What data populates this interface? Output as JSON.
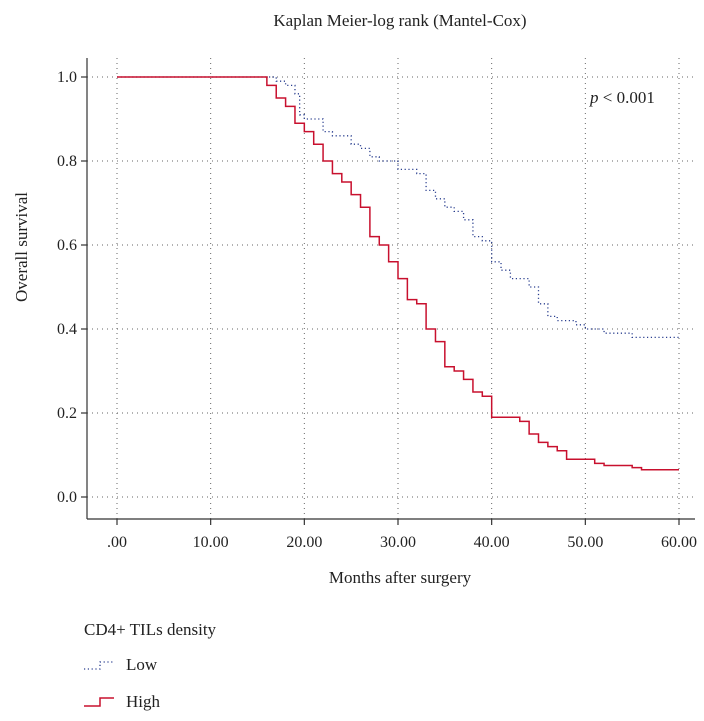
{
  "chart_data": {
    "type": "line",
    "title": "Kaplan Meier-log rank (Mantel-Cox)",
    "xlabel": "Months after surgery",
    "ylabel": "Overall survival",
    "xlim": [
      0,
      60
    ],
    "ylim": [
      0,
      1
    ],
    "x_ticks": [
      ".00",
      "10.00",
      "20.00",
      "30.00",
      "40.00",
      "50.00",
      "60.00"
    ],
    "y_ticks": [
      "0.0",
      "0.2",
      "0.4",
      "0.6",
      "0.8",
      "1.0"
    ],
    "grid": true,
    "annotation": {
      "italic": "p",
      "text": " < 0.001"
    },
    "legend": {
      "title": "CD4+ TILs density",
      "placement": "bottom-left",
      "entries": [
        "Low",
        "High"
      ]
    },
    "series": [
      {
        "name": "Low",
        "style": "dotted",
        "color": "#2a3f8f",
        "points": [
          [
            0,
            1.0
          ],
          [
            16,
            1.0
          ],
          [
            17,
            0.99
          ],
          [
            18,
            0.98
          ],
          [
            19,
            0.96
          ],
          [
            19.5,
            0.91
          ],
          [
            20,
            0.9
          ],
          [
            21,
            0.9
          ],
          [
            22,
            0.87
          ],
          [
            23,
            0.86
          ],
          [
            24,
            0.86
          ],
          [
            25,
            0.84
          ],
          [
            26,
            0.83
          ],
          [
            27,
            0.81
          ],
          [
            28,
            0.8
          ],
          [
            29,
            0.8
          ],
          [
            30,
            0.78
          ],
          [
            32,
            0.77
          ],
          [
            33,
            0.73
          ],
          [
            34,
            0.71
          ],
          [
            35,
            0.69
          ],
          [
            36,
            0.68
          ],
          [
            37,
            0.66
          ],
          [
            38,
            0.62
          ],
          [
            39,
            0.61
          ],
          [
            40,
            0.56
          ],
          [
            41,
            0.54
          ],
          [
            42,
            0.52
          ],
          [
            43,
            0.52
          ],
          [
            44,
            0.5
          ],
          [
            45,
            0.46
          ],
          [
            46,
            0.43
          ],
          [
            47,
            0.42
          ],
          [
            48,
            0.42
          ],
          [
            49,
            0.41
          ],
          [
            50,
            0.4
          ],
          [
            51,
            0.4
          ],
          [
            52,
            0.39
          ],
          [
            55,
            0.38
          ],
          [
            60,
            0.38
          ]
        ]
      },
      {
        "name": "High",
        "style": "solid",
        "color": "#c8102e",
        "points": [
          [
            0,
            1.0
          ],
          [
            15,
            1.0
          ],
          [
            16,
            0.98
          ],
          [
            17,
            0.95
          ],
          [
            18,
            0.93
          ],
          [
            19,
            0.89
          ],
          [
            20,
            0.87
          ],
          [
            21,
            0.84
          ],
          [
            22,
            0.8
          ],
          [
            23,
            0.77
          ],
          [
            24,
            0.75
          ],
          [
            25,
            0.72
          ],
          [
            26,
            0.69
          ],
          [
            27,
            0.62
          ],
          [
            28,
            0.6
          ],
          [
            29,
            0.56
          ],
          [
            30,
            0.52
          ],
          [
            31,
            0.47
          ],
          [
            32,
            0.46
          ],
          [
            33,
            0.4
          ],
          [
            34,
            0.37
          ],
          [
            35,
            0.31
          ],
          [
            36,
            0.3
          ],
          [
            37,
            0.28
          ],
          [
            38,
            0.25
          ],
          [
            39,
            0.24
          ],
          [
            40,
            0.19
          ],
          [
            43,
            0.18
          ],
          [
            44,
            0.15
          ],
          [
            45,
            0.13
          ],
          [
            46,
            0.12
          ],
          [
            47,
            0.11
          ],
          [
            48,
            0.09
          ],
          [
            50,
            0.09
          ],
          [
            51,
            0.08
          ],
          [
            52,
            0.075
          ],
          [
            55,
            0.07
          ],
          [
            56,
            0.065
          ],
          [
            60,
            0.065
          ]
        ]
      }
    ]
  }
}
